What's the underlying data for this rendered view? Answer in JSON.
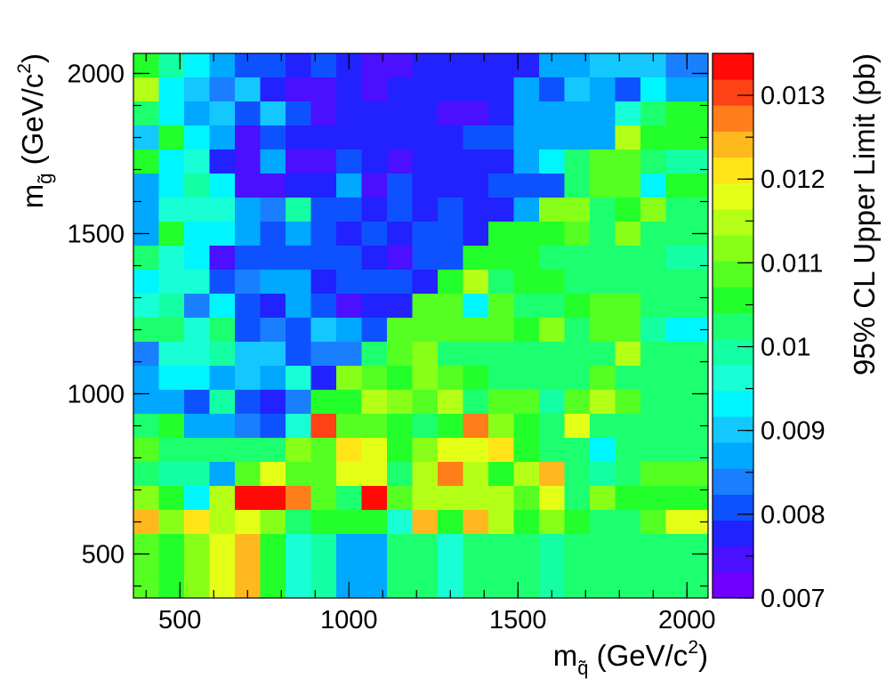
{
  "chart_data": {
    "type": "heatmap",
    "title": "",
    "xlabel": "m_q̃ (GeV/c²)",
    "ylabel": "m_g̃ (GeV/c²)",
    "zlabel": "95% CL Upper Limit (pb)",
    "xlabel_parts": {
      "m": "m",
      "sub": "q̃",
      "rest": " (GeV/c",
      "sup": "2",
      "close": ")"
    },
    "ylabel_parts": {
      "m": "m",
      "sub": "g̃",
      "rest": " (GeV/c",
      "sup": "2",
      "close": ")"
    },
    "xlim": [
      362.5,
      2062.5
    ],
    "ylim": [
      362.5,
      2062.5
    ],
    "zlim": [
      0.007,
      0.0135
    ],
    "grid": false,
    "x_ticks": [
      {
        "value": 500,
        "label": "500"
      },
      {
        "value": 1000,
        "label": "1000"
      },
      {
        "value": 1500,
        "label": "1500"
      },
      {
        "value": 2000,
        "label": "2000"
      }
    ],
    "y_ticks": [
      {
        "value": 500,
        "label": "500"
      },
      {
        "value": 1000,
        "label": "1000"
      },
      {
        "value": 1500,
        "label": "1500"
      },
      {
        "value": 2000,
        "label": "2000"
      }
    ],
    "z_ticks": [
      {
        "value": 0.007,
        "label": "0.007"
      },
      {
        "value": 0.008,
        "label": "0.008"
      },
      {
        "value": 0.009,
        "label": "0.009"
      },
      {
        "value": 0.01,
        "label": "0.01"
      },
      {
        "value": 0.011,
        "label": "0.011"
      },
      {
        "value": 0.012,
        "label": "0.012"
      },
      {
        "value": 0.013,
        "label": "0.013"
      }
    ],
    "palette": [
      "#6f00ff",
      "#4a10ff",
      "#2222ff",
      "#0e52ff",
      "#1a7fff",
      "#00a8ff",
      "#14c8ff",
      "#00f6ff",
      "#18ffd6",
      "#14ffa4",
      "#1cff6e",
      "#22ff2a",
      "#55ff22",
      "#88ff18",
      "#b4ff16",
      "#e4ff16",
      "#ffe418",
      "#ffb81e",
      "#ff7e1a",
      "#ff4216",
      "#ff0a06"
    ],
    "x_centers": [
      400,
      475,
      550,
      625,
      700,
      775,
      850,
      925,
      1000,
      1075,
      1150,
      1225,
      1300,
      1375,
      1450,
      1525,
      1600,
      1675,
      1750,
      1825,
      1900,
      1975,
      2050
    ],
    "y_centers": [
      2025,
      1950,
      1875,
      1800,
      1725,
      1650,
      1575,
      1500,
      1425,
      1350,
      1275,
      1200,
      1125,
      1050,
      975,
      900,
      825,
      750,
      675,
      600,
      525,
      450,
      400
    ],
    "values": [
      [
        0.0106,
        0.0098,
        0.0094,
        0.0087,
        0.008,
        0.008,
        0.0078,
        0.008,
        0.0078,
        0.0076,
        0.0075,
        0.0077,
        0.0078,
        0.0078,
        0.0078,
        0.0079,
        0.0086,
        0.0087,
        0.0089,
        0.009,
        0.0089,
        0.0085,
        0.0085
      ],
      [
        0.0115,
        0.0093,
        0.009,
        0.0085,
        0.009,
        0.0077,
        0.0075,
        0.0075,
        0.0078,
        0.0076,
        0.0078,
        0.0078,
        0.0078,
        0.0078,
        0.0078,
        0.0086,
        0.008,
        0.0091,
        0.0087,
        0.0081,
        0.0094,
        0.0087,
        0.0087
      ],
      [
        0.0102,
        0.0094,
        0.0088,
        0.0091,
        0.008,
        0.009,
        0.0081,
        0.0076,
        0.0078,
        0.0078,
        0.0078,
        0.0078,
        0.0074,
        0.0076,
        0.0078,
        0.0088,
        0.0087,
        0.0087,
        0.0087,
        0.0096,
        0.0104,
        0.0106,
        0.0106
      ],
      [
        0.0091,
        0.0105,
        0.0094,
        0.0088,
        0.0074,
        0.008,
        0.0079,
        0.0079,
        0.0077,
        0.0078,
        0.0078,
        0.0078,
        0.0078,
        0.0081,
        0.0081,
        0.0087,
        0.0087,
        0.0087,
        0.0087,
        0.0114,
        0.0106,
        0.0106,
        0.0106
      ],
      [
        0.0107,
        0.0093,
        0.0097,
        0.0079,
        0.0074,
        0.0086,
        0.0076,
        0.0076,
        0.008,
        0.0079,
        0.0076,
        0.0078,
        0.0078,
        0.0078,
        0.0078,
        0.0087,
        0.0092,
        0.0104,
        0.011,
        0.0108,
        0.0103,
        0.0098,
        0.0098
      ],
      [
        0.0088,
        0.0092,
        0.0098,
        0.0092,
        0.0075,
        0.0075,
        0.0078,
        0.0078,
        0.0086,
        0.0075,
        0.0082,
        0.0078,
        0.0078,
        0.0078,
        0.008,
        0.0081,
        0.0081,
        0.0104,
        0.011,
        0.011,
        0.0093,
        0.0106,
        0.0106
      ],
      [
        0.0088,
        0.0095,
        0.0096,
        0.0096,
        0.0088,
        0.0085,
        0.0099,
        0.0082,
        0.0081,
        0.0077,
        0.008,
        0.0079,
        0.008,
        0.0077,
        0.0078,
        0.0087,
        0.0113,
        0.0113,
        0.0104,
        0.0106,
        0.0113,
        0.0101,
        0.0101
      ],
      [
        0.0088,
        0.0105,
        0.0092,
        0.0092,
        0.0088,
        0.008,
        0.0088,
        0.008,
        0.0079,
        0.008,
        0.0077,
        0.008,
        0.008,
        0.0077,
        0.0106,
        0.0106,
        0.0106,
        0.0108,
        0.0104,
        0.0112,
        0.0102,
        0.0102,
        0.0102
      ],
      [
        0.0102,
        0.0096,
        0.0092,
        0.0076,
        0.008,
        0.0082,
        0.008,
        0.008,
        0.008,
        0.0077,
        0.0075,
        0.008,
        0.008,
        0.0106,
        0.0106,
        0.0106,
        0.0104,
        0.0104,
        0.0104,
        0.0104,
        0.0104,
        0.0099,
        0.0099
      ],
      [
        0.0092,
        0.0097,
        0.0097,
        0.008,
        0.0084,
        0.0088,
        0.0086,
        0.0077,
        0.008,
        0.008,
        0.008,
        0.0077,
        0.0106,
        0.0114,
        0.0104,
        0.0106,
        0.0106,
        0.0104,
        0.0104,
        0.0104,
        0.0104,
        0.0104,
        0.0104
      ],
      [
        0.0095,
        0.0098,
        0.0084,
        0.0092,
        0.0082,
        0.0077,
        0.0088,
        0.0081,
        0.0074,
        0.0079,
        0.0079,
        0.011,
        0.011,
        0.0094,
        0.011,
        0.0104,
        0.0104,
        0.0106,
        0.011,
        0.011,
        0.0104,
        0.0104,
        0.0104
      ],
      [
        0.0104,
        0.0104,
        0.0097,
        0.0102,
        0.0081,
        0.0085,
        0.008,
        0.0091,
        0.0086,
        0.008,
        0.011,
        0.011,
        0.011,
        0.011,
        0.011,
        0.0106,
        0.0112,
        0.0104,
        0.0108,
        0.011,
        0.01,
        0.0094,
        0.0094
      ],
      [
        0.0085,
        0.0095,
        0.0095,
        0.0098,
        0.0091,
        0.0091,
        0.0081,
        0.0085,
        0.0084,
        0.0102,
        0.011,
        0.0113,
        0.0104,
        0.0104,
        0.0104,
        0.0104,
        0.0104,
        0.0104,
        0.0104,
        0.0114,
        0.0104,
        0.0104,
        0.0104
      ],
      [
        0.0086,
        0.0092,
        0.0094,
        0.0086,
        0.0091,
        0.0086,
        0.0097,
        0.0078,
        0.0113,
        0.011,
        0.0106,
        0.0113,
        0.011,
        0.0106,
        0.0102,
        0.0104,
        0.0104,
        0.0102,
        0.011,
        0.0104,
        0.0104,
        0.0102,
        0.0102
      ],
      [
        0.0087,
        0.0087,
        0.0081,
        0.0099,
        0.0081,
        0.0078,
        0.0085,
        0.0106,
        0.0106,
        0.0114,
        0.0112,
        0.011,
        0.0114,
        0.0104,
        0.011,
        0.011,
        0.01,
        0.011,
        0.0114,
        0.011,
        0.0104,
        0.0104,
        0.0104
      ],
      [
        0.0104,
        0.0106,
        0.0086,
        0.0086,
        0.0084,
        0.0081,
        0.0097,
        0.0131,
        0.011,
        0.011,
        0.0106,
        0.0102,
        0.0106,
        0.0128,
        0.0112,
        0.0106,
        0.0104,
        0.0118,
        0.0102,
        0.0102,
        0.0104,
        0.0104,
        0.0104
      ],
      [
        0.0108,
        0.0102,
        0.0104,
        0.0104,
        0.0104,
        0.0104,
        0.0112,
        0.011,
        0.0122,
        0.0119,
        0.0106,
        0.0112,
        0.0117,
        0.0118,
        0.012,
        0.0106,
        0.0102,
        0.0102,
        0.0094,
        0.0102,
        0.0104,
        0.0104,
        0.0104
      ],
      [
        0.0104,
        0.01,
        0.01,
        0.0088,
        0.0108,
        0.0118,
        0.011,
        0.011,
        0.0118,
        0.0118,
        0.0102,
        0.0116,
        0.0126,
        0.0116,
        0.0106,
        0.0114,
        0.0124,
        0.0104,
        0.01,
        0.0104,
        0.0108,
        0.0108,
        0.0108
      ],
      [
        0.0112,
        0.0106,
        0.0092,
        0.0116,
        0.0133,
        0.0135,
        0.0127,
        0.011,
        0.0104,
        0.0132,
        0.011,
        0.0116,
        0.0116,
        0.0116,
        0.0116,
        0.011,
        0.0118,
        0.0104,
        0.0112,
        0.0106,
        0.0106,
        0.0106,
        0.0106
      ],
      [
        0.0124,
        0.0112,
        0.0122,
        0.0114,
        0.0119,
        0.0112,
        0.0104,
        0.0106,
        0.0106,
        0.0106,
        0.0096,
        0.0124,
        0.0106,
        0.0124,
        0.0116,
        0.0106,
        0.0112,
        0.0106,
        0.0104,
        0.0102,
        0.011,
        0.0118,
        0.0118
      ],
      [
        0.0108,
        0.0106,
        0.0112,
        0.0118,
        0.0124,
        0.0106,
        0.0097,
        0.01,
        0.0087,
        0.0087,
        0.0102,
        0.0104,
        0.0096,
        0.0102,
        0.0104,
        0.0102,
        0.01,
        0.0104,
        0.0104,
        0.0104,
        0.0104,
        0.0104,
        0.0104
      ],
      [
        0.0108,
        0.0106,
        0.0112,
        0.0118,
        0.0124,
        0.0106,
        0.0097,
        0.01,
        0.0087,
        0.0087,
        0.0102,
        0.0104,
        0.0096,
        0.0102,
        0.0104,
        0.0102,
        0.01,
        0.0104,
        0.0104,
        0.0104,
        0.0104,
        0.0104,
        0.0104
      ],
      [
        0.0108,
        0.0106,
        0.0112,
        0.0118,
        0.0124,
        0.0106,
        0.0097,
        0.01,
        0.0087,
        0.0087,
        0.0102,
        0.0104,
        0.0096,
        0.0102,
        0.0104,
        0.0102,
        0.01,
        0.0104,
        0.0104,
        0.0104,
        0.0104,
        0.0104,
        0.0104
      ]
    ]
  }
}
